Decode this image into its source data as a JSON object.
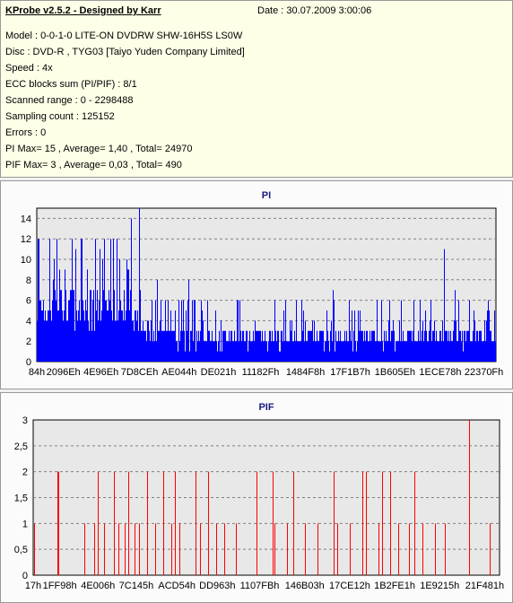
{
  "header": {
    "title": "KProbe v2.5.2 - Designed by Karr",
    "date": "Date : 30.07.2009 3:00:06"
  },
  "info_lines": [
    "Model : 0-0-1-0 LITE-ON DVDRW SHW-16H5S  LS0W",
    "Disc : DVD-R , TYG03 [Taiyo Yuden Company Limited]",
    "Speed : 4x",
    "ECC blocks sum (PI/PIF) : 8/1",
    "Scanned range : 0 - 2298488",
    "Sampling count : 125152",
    "Errors : 0",
    "PI Max= 15 , Average= 1,40 , Total= 24970",
    "PIF Max= 3 , Average= 0,03 , Total= 490"
  ],
  "colors": {
    "pi_series": "#0000ff",
    "pif_series": "#ff0000",
    "plot_bg": "#e8e8e8",
    "title": "#1a1a80"
  },
  "chart_data": [
    {
      "type": "bar",
      "title": "PI",
      "xlabel": "",
      "ylabel": "",
      "ylim": [
        0,
        15
      ],
      "xlim": [
        132,
        2298488
      ],
      "grid": true,
      "yticks": [
        "0",
        "2",
        "4",
        "6",
        "8",
        "10",
        "12",
        "14"
      ],
      "xtick_labels": [
        "84h",
        "2096Eh",
        "4E96Eh",
        "7D8CEh",
        "AE044h",
        "DE021h",
        "11182Fh",
        "1484F8h",
        "17F1B7h",
        "1B605Eh",
        "1ECE78h",
        "22370Fh"
      ],
      "xtick_values": [
        132,
        133486,
        321902,
        514254,
        712772,
        909345,
        1120303,
        1344760,
        1569207,
        1793118,
        2019960,
        2238223
      ],
      "segments": [
        {
          "x_from": 132,
          "x_to": 514254,
          "base": 4,
          "spread": 4,
          "max": 12
        },
        {
          "x_from": 514254,
          "x_to": 560000,
          "base": 3,
          "spread": 2,
          "max": 7
        },
        {
          "x_from": 560000,
          "x_to": 2298488,
          "base": 2,
          "spread": 2,
          "max": 6
        }
      ],
      "peaks": [
        {
          "x": 100000,
          "y": 12
        },
        {
          "x": 290000,
          "y": 12
        },
        {
          "x": 380000,
          "y": 12
        },
        {
          "x": 470000,
          "y": 14
        },
        {
          "x": 510000,
          "y": 15
        },
        {
          "x": 600000,
          "y": 8
        },
        {
          "x": 760000,
          "y": 8
        },
        {
          "x": 1000000,
          "y": 6
        },
        {
          "x": 1480000,
          "y": 7
        },
        {
          "x": 2040000,
          "y": 11
        },
        {
          "x": 2090000,
          "y": 7
        }
      ]
    },
    {
      "type": "bar",
      "title": "PIF",
      "xlabel": "",
      "ylabel": "",
      "ylim": [
        0,
        3
      ],
      "xlim": [
        23,
        2298488
      ],
      "grid": true,
      "yticks": [
        "0",
        "0,5",
        "1",
        "1,5",
        "2",
        "2,5",
        "3"
      ],
      "xtick_labels": [
        "17h",
        "1FF98h",
        "4E006h",
        "7C145h",
        "ACD54h",
        "DD963h",
        "1107FBh",
        "146B03h",
        "17CE12h",
        "1B2FE1h",
        "1E9215h",
        "21F481h"
      ],
      "xtick_values": [
        23,
        130968,
        319494,
        508229,
        707924,
        907619,
        1116155,
        1338115,
        1560082,
        1781729,
        2003477,
        2225281
      ],
      "series": [
        {
          "name": "",
          "x": [
            5000,
            120000,
            125000,
            250000,
            300000,
            320000,
            350000,
            400000,
            420000,
            450000,
            470000,
            500000,
            520000,
            560000,
            600000,
            640000,
            680000,
            700000,
            720000,
            800000,
            820000,
            860000,
            900000,
            940000,
            1000000,
            1100000,
            1180000,
            1190000,
            1250000,
            1280000,
            1340000,
            1400000,
            1480000,
            1500000,
            1560000,
            1620000,
            1640000,
            1700000,
            1720000,
            1760000,
            1800000,
            1850000,
            1880000,
            1920000,
            1980000,
            2030000,
            2150000,
            2250000
          ],
          "values": [
            1,
            2,
            2,
            1,
            1,
            2,
            1,
            2,
            1,
            1,
            2,
            1,
            1,
            2,
            1,
            2,
            1,
            2,
            1,
            2,
            1,
            2,
            1,
            1,
            1,
            2,
            2,
            1,
            1,
            2,
            1,
            1,
            2,
            1,
            1,
            2,
            2,
            1,
            2,
            2,
            1,
            1,
            2,
            1,
            1,
            1,
            3,
            1
          ]
        }
      ]
    }
  ]
}
